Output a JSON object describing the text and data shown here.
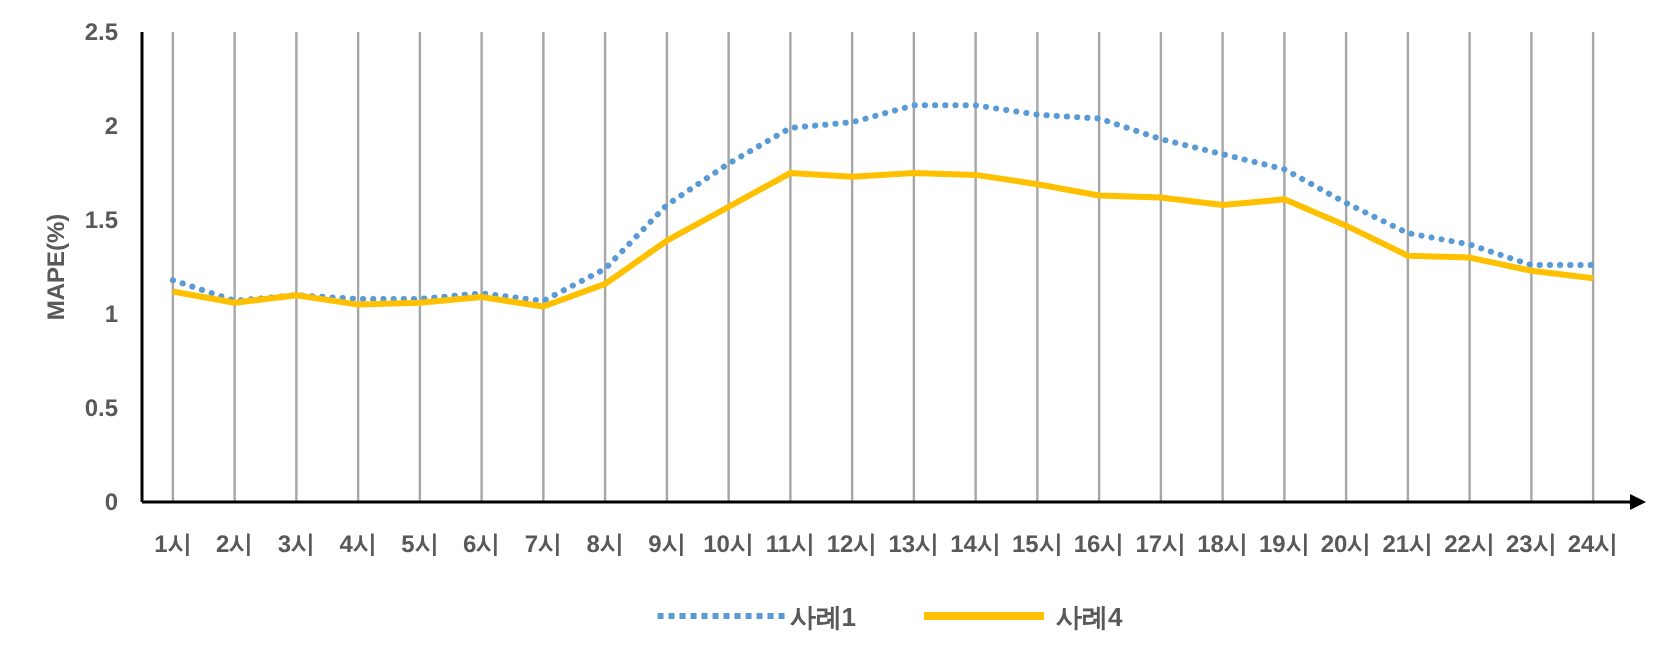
{
  "chart_data": {
    "type": "line",
    "ylabel": "MAPE(%)",
    "categories": [
      "1시",
      "2시",
      "3시",
      "4시",
      "5시",
      "6시",
      "7시",
      "8시",
      "9시",
      "10시",
      "11시",
      "12시",
      "13시",
      "14시",
      "15시",
      "16시",
      "17시",
      "18시",
      "19시",
      "20시",
      "21시",
      "22시",
      "23시",
      "24시"
    ],
    "series": [
      {
        "name": "사례1",
        "color": "#5b9bd5",
        "line_style": "dotted",
        "values": [
          1.18,
          1.07,
          1.1,
          1.08,
          1.08,
          1.11,
          1.07,
          1.24,
          1.58,
          1.8,
          1.99,
          2.02,
          2.11,
          2.11,
          2.06,
          2.04,
          1.93,
          1.85,
          1.77,
          1.59,
          1.43,
          1.37,
          1.26,
          1.26
        ]
      },
      {
        "name": "사례4",
        "color": "#ffc000",
        "line_style": "solid",
        "values": [
          1.12,
          1.06,
          1.1,
          1.05,
          1.06,
          1.09,
          1.04,
          1.16,
          1.39,
          1.57,
          1.75,
          1.73,
          1.75,
          1.74,
          1.69,
          1.63,
          1.62,
          1.58,
          1.61,
          1.47,
          1.31,
          1.3,
          1.23,
          1.19
        ]
      }
    ],
    "ylim": [
      0,
      2.5
    ],
    "yticks": [
      0,
      0.5,
      1,
      1.5,
      2,
      2.5
    ],
    "grid": "x",
    "legend": "bottom",
    "marker": "none"
  }
}
